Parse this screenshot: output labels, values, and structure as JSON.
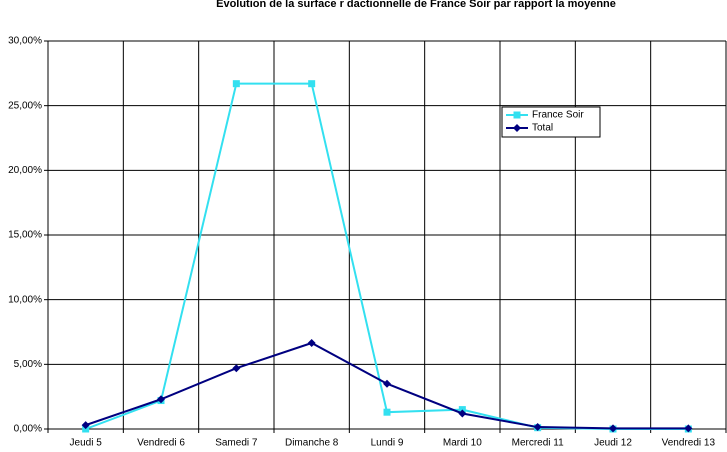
{
  "chart_data": {
    "type": "line",
    "title": "Evolution de la surface r  dactionnelle de France Soir par rapport    la moyenne",
    "categories": [
      "Jeudi 5",
      "Vendredi 6",
      "Samedi 7",
      "Dimanche 8",
      "Lundi 9",
      "Mardi 10",
      "Mercredi 11",
      "Jeudi 12",
      "Vendredi 13"
    ],
    "series": [
      {
        "name": "France Soir",
        "color": "#33e0f0",
        "marker": "square",
        "values": [
          0.0,
          2.2,
          26.7,
          26.7,
          1.3,
          1.5,
          0.1,
          0.0,
          0.0
        ]
      },
      {
        "name": "Total",
        "color": "#000080",
        "marker": "diamond",
        "values": [
          0.3,
          2.3,
          4.7,
          6.65,
          3.5,
          1.2,
          0.15,
          0.05,
          0.05
        ]
      }
    ],
    "ylim": [
      0,
      30
    ],
    "yticks": [
      {
        "value": 0,
        "label": "0,00%"
      },
      {
        "value": 5,
        "label": "5,00%"
      },
      {
        "value": 10,
        "label": "10,00%"
      },
      {
        "value": 15,
        "label": "15,00%"
      },
      {
        "value": 20,
        "label": "20,00%"
      },
      {
        "value": 25,
        "label": "25,00%"
      },
      {
        "value": 30,
        "label": "30,00%"
      }
    ],
    "grid": true,
    "legend": "upper right"
  }
}
